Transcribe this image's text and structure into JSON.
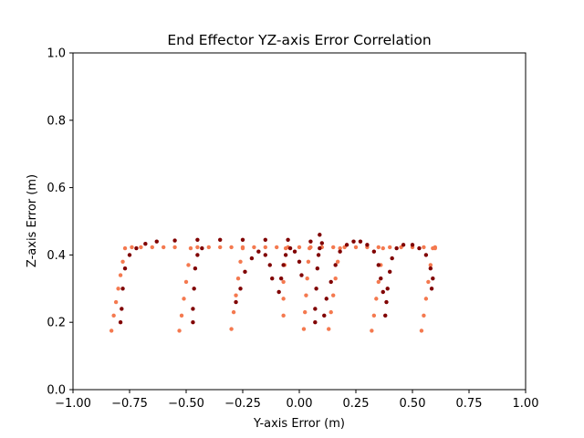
{
  "chart_data": {
    "type": "scatter",
    "title": "End Effector YZ-axis Error Correlation",
    "xlabel": "Y-axis Error (m)",
    "ylabel": "Z-axis Error (m)",
    "xlim": [
      -1.0,
      1.0
    ],
    "ylim": [
      0.0,
      1.0
    ],
    "xticks": [
      "−1.00",
      "−0.75",
      "−0.50",
      "−0.25",
      "0.00",
      "0.25",
      "0.50",
      "0.75",
      "1.00"
    ],
    "xtick_values": [
      -1.0,
      -0.75,
      -0.5,
      -0.25,
      0.0,
      0.25,
      0.5,
      0.75,
      1.0
    ],
    "yticks": [
      "0.0",
      "0.2",
      "0.4",
      "0.6",
      "0.8",
      "1.0"
    ],
    "ytick_values": [
      0.0,
      0.2,
      0.4,
      0.6,
      0.8,
      1.0
    ],
    "grid": false,
    "legend": "none",
    "series": [
      {
        "color": "#f4794f",
        "points": [
          [
            -0.83,
            0.175
          ],
          [
            -0.82,
            0.22
          ],
          [
            -0.81,
            0.26
          ],
          [
            -0.8,
            0.3
          ],
          [
            -0.79,
            0.34
          ],
          [
            -0.78,
            0.38
          ],
          [
            -0.77,
            0.42
          ],
          [
            -0.74,
            0.423
          ],
          [
            -0.7,
            0.423
          ],
          [
            -0.65,
            0.423
          ],
          [
            -0.6,
            0.423
          ],
          [
            -0.55,
            0.423
          ],
          [
            -0.53,
            0.175
          ],
          [
            -0.52,
            0.22
          ],
          [
            -0.51,
            0.27
          ],
          [
            -0.5,
            0.32
          ],
          [
            -0.49,
            0.37
          ],
          [
            -0.48,
            0.42
          ],
          [
            -0.45,
            0.423
          ],
          [
            -0.4,
            0.423
          ],
          [
            -0.35,
            0.423
          ],
          [
            -0.3,
            0.423
          ],
          [
            -0.25,
            0.423
          ],
          [
            -0.3,
            0.18
          ],
          [
            -0.29,
            0.23
          ],
          [
            -0.28,
            0.28
          ],
          [
            -0.27,
            0.33
          ],
          [
            -0.26,
            0.38
          ],
          [
            -0.25,
            0.42
          ],
          [
            -0.2,
            0.423
          ],
          [
            -0.15,
            0.423
          ],
          [
            -0.1,
            0.423
          ],
          [
            -0.05,
            0.423
          ],
          [
            0.0,
            0.423
          ],
          [
            -0.07,
            0.22
          ],
          [
            -0.07,
            0.27
          ],
          [
            -0.07,
            0.32
          ],
          [
            -0.065,
            0.37
          ],
          [
            -0.06,
            0.42
          ],
          [
            0.02,
            0.18
          ],
          [
            0.025,
            0.23
          ],
          [
            0.03,
            0.28
          ],
          [
            0.035,
            0.33
          ],
          [
            0.04,
            0.38
          ],
          [
            0.045,
            0.42
          ],
          [
            0.05,
            0.423
          ],
          [
            0.1,
            0.423
          ],
          [
            0.15,
            0.423
          ],
          [
            0.2,
            0.423
          ],
          [
            0.25,
            0.423
          ],
          [
            0.3,
            0.423
          ],
          [
            0.13,
            0.18
          ],
          [
            0.14,
            0.23
          ],
          [
            0.15,
            0.28
          ],
          [
            0.16,
            0.33
          ],
          [
            0.17,
            0.38
          ],
          [
            0.18,
            0.42
          ],
          [
            0.32,
            0.175
          ],
          [
            0.33,
            0.22
          ],
          [
            0.34,
            0.27
          ],
          [
            0.35,
            0.32
          ],
          [
            0.36,
            0.37
          ],
          [
            0.37,
            0.42
          ],
          [
            0.35,
            0.423
          ],
          [
            0.4,
            0.423
          ],
          [
            0.45,
            0.423
          ],
          [
            0.5,
            0.423
          ],
          [
            0.55,
            0.423
          ],
          [
            0.6,
            0.423
          ],
          [
            0.54,
            0.175
          ],
          [
            0.55,
            0.22
          ],
          [
            0.56,
            0.27
          ],
          [
            0.57,
            0.32
          ],
          [
            0.58,
            0.37
          ],
          [
            0.59,
            0.42
          ],
          [
            0.6,
            0.42
          ]
        ]
      },
      {
        "color": "#800000",
        "points": [
          [
            -0.79,
            0.2
          ],
          [
            -0.785,
            0.24
          ],
          [
            -0.78,
            0.3
          ],
          [
            -0.77,
            0.36
          ],
          [
            -0.75,
            0.4
          ],
          [
            -0.72,
            0.42
          ],
          [
            -0.68,
            0.433
          ],
          [
            -0.63,
            0.44
          ],
          [
            -0.55,
            0.443
          ],
          [
            -0.45,
            0.445
          ],
          [
            -0.35,
            0.445
          ],
          [
            -0.25,
            0.445
          ],
          [
            -0.15,
            0.445
          ],
          [
            -0.05,
            0.445
          ],
          [
            0.05,
            0.44
          ],
          [
            0.1,
            0.435
          ],
          [
            0.09,
            0.46
          ],
          [
            -0.47,
            0.2
          ],
          [
            -0.47,
            0.24
          ],
          [
            -0.465,
            0.3
          ],
          [
            -0.46,
            0.36
          ],
          [
            -0.45,
            0.4
          ],
          [
            -0.43,
            0.42
          ],
          [
            -0.28,
            0.26
          ],
          [
            -0.26,
            0.3
          ],
          [
            -0.24,
            0.35
          ],
          [
            -0.21,
            0.39
          ],
          [
            -0.18,
            0.41
          ],
          [
            -0.15,
            0.4
          ],
          [
            -0.13,
            0.37
          ],
          [
            -0.12,
            0.33
          ],
          [
            -0.09,
            0.29
          ],
          [
            -0.08,
            0.33
          ],
          [
            -0.07,
            0.37
          ],
          [
            -0.06,
            0.4
          ],
          [
            -0.04,
            0.42
          ],
          [
            -0.02,
            0.41
          ],
          [
            0.0,
            0.38
          ],
          [
            0.01,
            0.34
          ],
          [
            0.07,
            0.2
          ],
          [
            0.07,
            0.24
          ],
          [
            0.075,
            0.3
          ],
          [
            0.08,
            0.36
          ],
          [
            0.085,
            0.4
          ],
          [
            0.09,
            0.42
          ],
          [
            0.11,
            0.22
          ],
          [
            0.12,
            0.27
          ],
          [
            0.14,
            0.32
          ],
          [
            0.16,
            0.37
          ],
          [
            0.18,
            0.41
          ],
          [
            0.21,
            0.43
          ],
          [
            0.24,
            0.44
          ],
          [
            0.27,
            0.44
          ],
          [
            0.3,
            0.43
          ],
          [
            0.33,
            0.41
          ],
          [
            0.35,
            0.37
          ],
          [
            0.36,
            0.33
          ],
          [
            0.37,
            0.29
          ],
          [
            0.38,
            0.22
          ],
          [
            0.385,
            0.26
          ],
          [
            0.39,
            0.3
          ],
          [
            0.4,
            0.35
          ],
          [
            0.41,
            0.39
          ],
          [
            0.43,
            0.42
          ],
          [
            0.46,
            0.43
          ],
          [
            0.5,
            0.43
          ],
          [
            0.53,
            0.42
          ],
          [
            0.56,
            0.4
          ],
          [
            0.58,
            0.36
          ],
          [
            0.59,
            0.33
          ],
          [
            0.585,
            0.3
          ]
        ]
      }
    ]
  }
}
